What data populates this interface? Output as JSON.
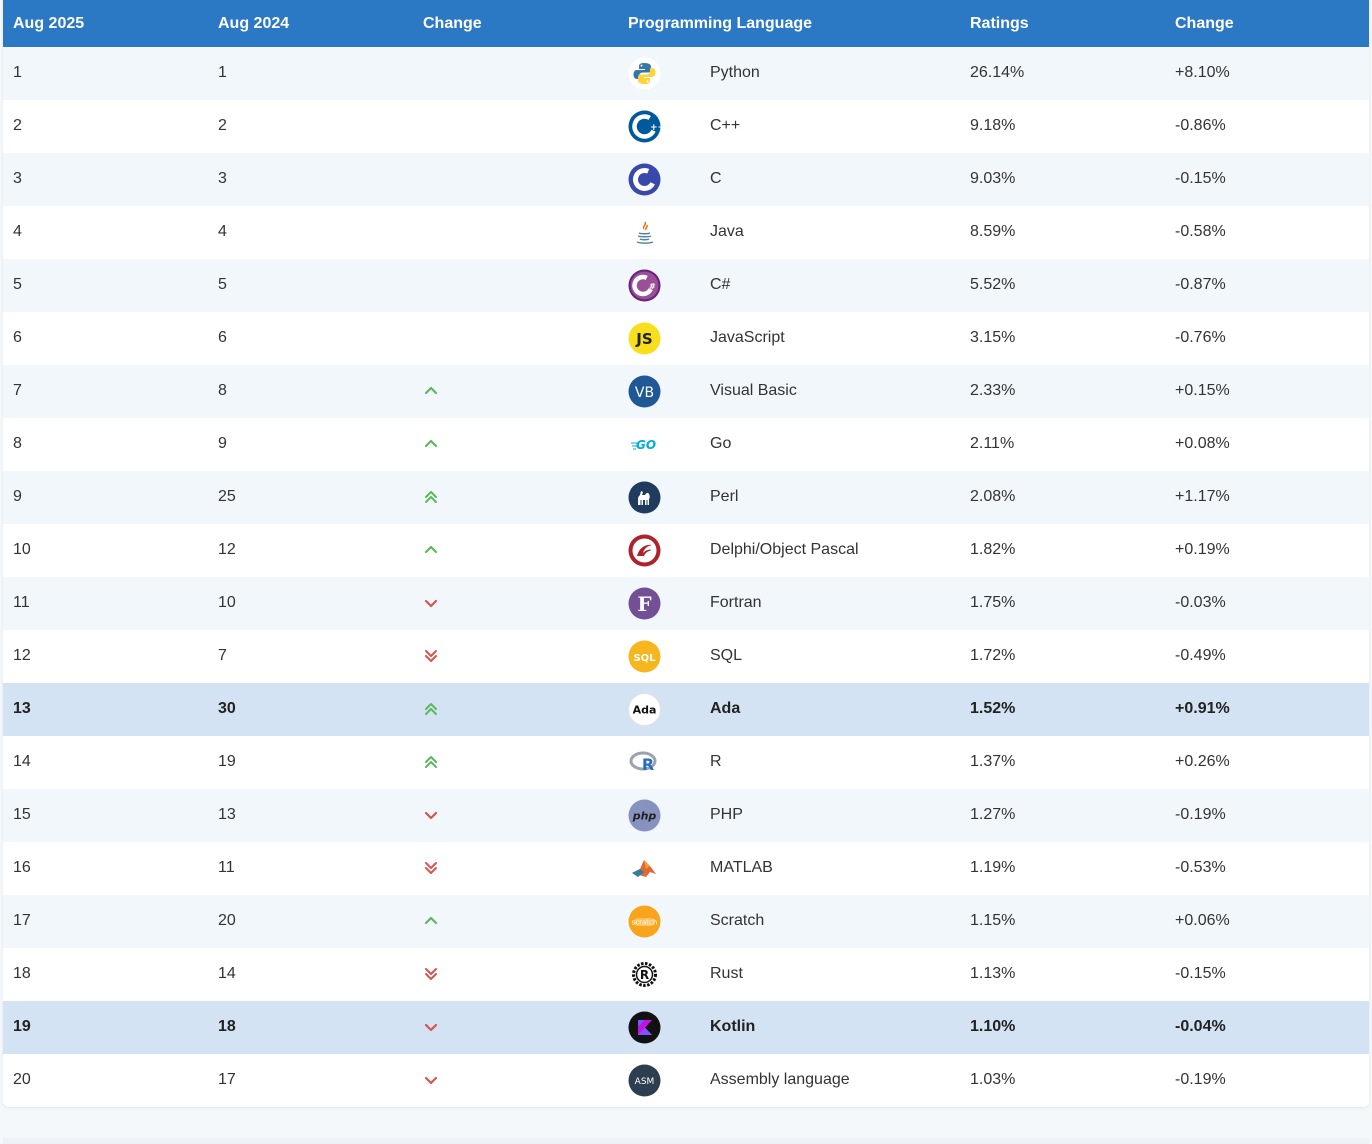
{
  "columns": {
    "rank_now": "Aug 2025",
    "rank_prev": "Aug 2024",
    "change": "Change",
    "language": "Programming Language",
    "ratings": "Ratings",
    "delta": "Change"
  },
  "colors": {
    "header_bg": "#2b78c5",
    "row_alt": "#f2f7fc",
    "row_highlight": "#d3e3f3",
    "up": "#5cb85c",
    "down": "#d9534f"
  },
  "rows": [
    {
      "rank": "1",
      "prev": "1",
      "trend": "none",
      "language": "Python",
      "icon": "python-icon",
      "ratings": "26.14%",
      "change": "+8.10%",
      "highlight": false
    },
    {
      "rank": "2",
      "prev": "2",
      "trend": "none",
      "language": "C++",
      "icon": "cpp-icon",
      "ratings": "9.18%",
      "change": "-0.86%",
      "highlight": false
    },
    {
      "rank": "3",
      "prev": "3",
      "trend": "none",
      "language": "C",
      "icon": "c-icon",
      "ratings": "9.03%",
      "change": "-0.15%",
      "highlight": false
    },
    {
      "rank": "4",
      "prev": "4",
      "trend": "none",
      "language": "Java",
      "icon": "java-icon",
      "ratings": "8.59%",
      "change": "-0.58%",
      "highlight": false
    },
    {
      "rank": "5",
      "prev": "5",
      "trend": "none",
      "language": "C#",
      "icon": "csharp-icon",
      "ratings": "5.52%",
      "change": "-0.87%",
      "highlight": false
    },
    {
      "rank": "6",
      "prev": "6",
      "trend": "none",
      "language": "JavaScript",
      "icon": "javascript-icon",
      "ratings": "3.15%",
      "change": "-0.76%",
      "highlight": false
    },
    {
      "rank": "7",
      "prev": "8",
      "trend": "up",
      "language": "Visual Basic",
      "icon": "visual-basic-icon",
      "ratings": "2.33%",
      "change": "+0.15%",
      "highlight": false
    },
    {
      "rank": "8",
      "prev": "9",
      "trend": "up",
      "language": "Go",
      "icon": "go-icon",
      "ratings": "2.11%",
      "change": "+0.08%",
      "highlight": false
    },
    {
      "rank": "9",
      "prev": "25",
      "trend": "upup",
      "language": "Perl",
      "icon": "perl-icon",
      "ratings": "2.08%",
      "change": "+1.17%",
      "highlight": false
    },
    {
      "rank": "10",
      "prev": "12",
      "trend": "up",
      "language": "Delphi/Object Pascal",
      "icon": "delphi-icon",
      "ratings": "1.82%",
      "change": "+0.19%",
      "highlight": false
    },
    {
      "rank": "11",
      "prev": "10",
      "trend": "down",
      "language": "Fortran",
      "icon": "fortran-icon",
      "ratings": "1.75%",
      "change": "-0.03%",
      "highlight": false
    },
    {
      "rank": "12",
      "prev": "7",
      "trend": "downdown",
      "language": "SQL",
      "icon": "sql-icon",
      "ratings": "1.72%",
      "change": "-0.49%",
      "highlight": false
    },
    {
      "rank": "13",
      "prev": "30",
      "trend": "upup",
      "language": "Ada",
      "icon": "ada-icon",
      "ratings": "1.52%",
      "change": "+0.91%",
      "highlight": true
    },
    {
      "rank": "14",
      "prev": "19",
      "trend": "upup",
      "language": "R",
      "icon": "r-icon",
      "ratings": "1.37%",
      "change": "+0.26%",
      "highlight": false
    },
    {
      "rank": "15",
      "prev": "13",
      "trend": "down",
      "language": "PHP",
      "icon": "php-icon",
      "ratings": "1.27%",
      "change": "-0.19%",
      "highlight": false
    },
    {
      "rank": "16",
      "prev": "11",
      "trend": "downdown",
      "language": "MATLAB",
      "icon": "matlab-icon",
      "ratings": "1.19%",
      "change": "-0.53%",
      "highlight": false
    },
    {
      "rank": "17",
      "prev": "20",
      "trend": "up",
      "language": "Scratch",
      "icon": "scratch-icon",
      "ratings": "1.15%",
      "change": "+0.06%",
      "highlight": false
    },
    {
      "rank": "18",
      "prev": "14",
      "trend": "downdown",
      "language": "Rust",
      "icon": "rust-icon",
      "ratings": "1.13%",
      "change": "-0.15%",
      "highlight": false
    },
    {
      "rank": "19",
      "prev": "18",
      "trend": "down",
      "language": "Kotlin",
      "icon": "kotlin-icon",
      "ratings": "1.10%",
      "change": "-0.04%",
      "highlight": true
    },
    {
      "rank": "20",
      "prev": "17",
      "trend": "down",
      "language": "Assembly language",
      "icon": "assembly-icon",
      "ratings": "1.03%",
      "change": "-0.19%",
      "highlight": false
    }
  ]
}
